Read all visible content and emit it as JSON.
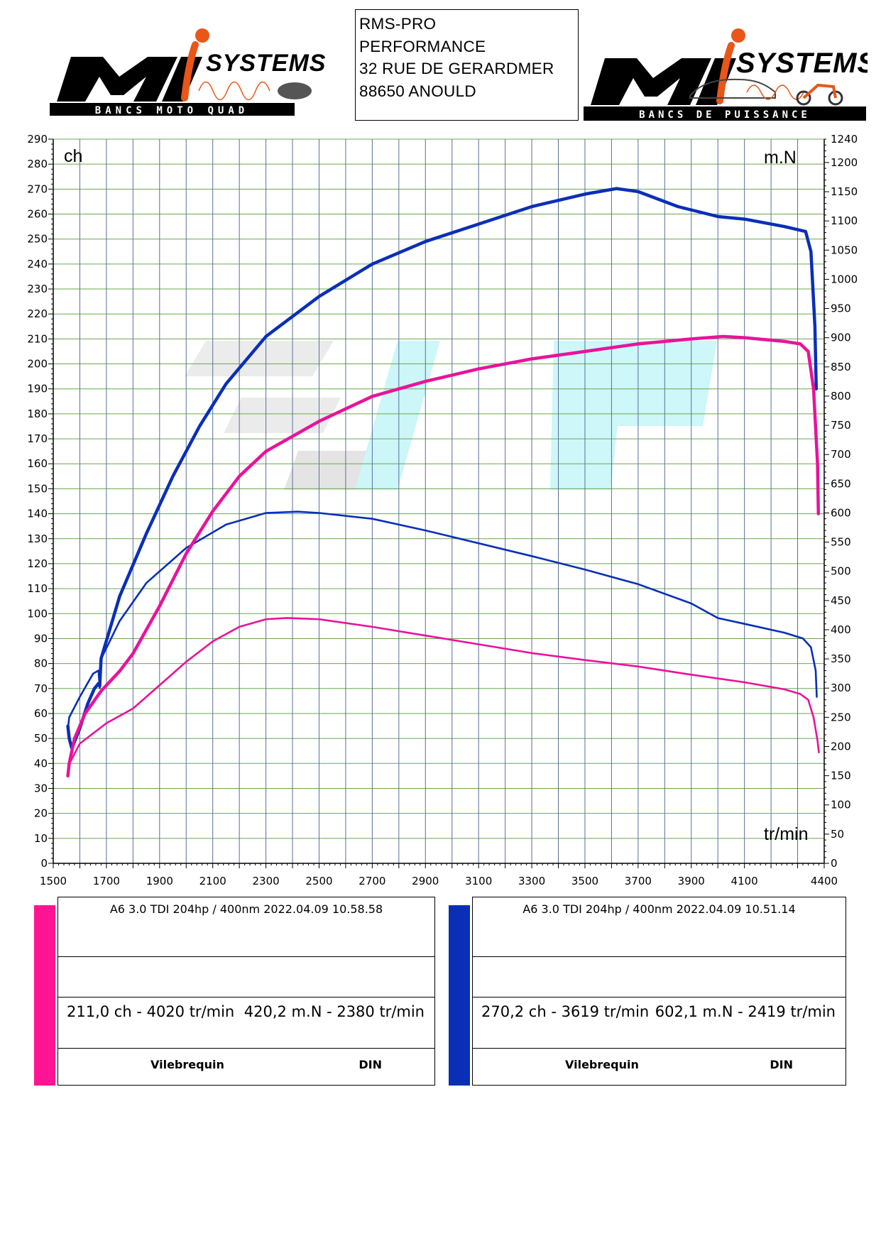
{
  "header": {
    "left_logo": {
      "brand": "Mi SYSTEMS",
      "tagline": "BANCS MOTO QUAD"
    },
    "right_logo": {
      "brand": "Mi SYSTEMS",
      "tagline": "BANCS DE PUISSANCE"
    },
    "address": [
      "RMS-PRO",
      "PERFORMANCE",
      "32 RUE DE GERARDMER",
      "88650 ANOULD"
    ]
  },
  "chart_data": {
    "type": "line",
    "left_axis_label": "ch",
    "right_axis_label": "m.N",
    "x_axis_label": "tr/min",
    "xlim": [
      1500,
      4400
    ],
    "ylim_left": [
      0,
      290
    ],
    "ylim_right": [
      0,
      1240
    ],
    "x_ticks": [
      "1500",
      "1700",
      "1900",
      "2100",
      "2300",
      "2500",
      "2700",
      "2900",
      "3100",
      "3300",
      "3500",
      "3700",
      "3900",
      "4100",
      "4400"
    ],
    "y_left_ticks": [
      "0",
      "10",
      "20",
      "30",
      "40",
      "50",
      "60",
      "70",
      "80",
      "90",
      "100",
      "110",
      "120",
      "130",
      "140",
      "150",
      "160",
      "170",
      "180",
      "190",
      "200",
      "210",
      "220",
      "230",
      "240",
      "250",
      "260",
      "270",
      "280",
      "290"
    ],
    "y_right_ticks": [
      "0",
      "50",
      "100",
      "150",
      "200",
      "250",
      "300",
      "350",
      "400",
      "450",
      "500",
      "550",
      "600",
      "650",
      "700",
      "750",
      "800",
      "850",
      "900",
      "950",
      "1000",
      "1050",
      "1100",
      "1150",
      "1200",
      "1240"
    ],
    "grid": true,
    "colors": {
      "pink": "#e8139a",
      "blue": "#0a2fb7"
    },
    "series": [
      {
        "run": "10.51.14",
        "quantity": "power",
        "axis": "left",
        "color": "#0a2fb7",
        "x": [
          1555,
          1560,
          1570,
          1600,
          1630,
          1655,
          1670,
          1675,
          1680,
          1750,
          1850,
          1950,
          2050,
          2150,
          2300,
          2500,
          2700,
          2900,
          3100,
          3300,
          3500,
          3619,
          3700,
          3850,
          4000,
          4100,
          4250,
          4330,
          4350,
          4365,
          4370
        ],
        "y": [
          55,
          50,
          46,
          54,
          64,
          70,
          72,
          71,
          82,
          107,
          132,
          155,
          175,
          192,
          211,
          227,
          240,
          249,
          256,
          263,
          268,
          270.2,
          269,
          263,
          259,
          258,
          255,
          253,
          245,
          215,
          190
        ]
      },
      {
        "run": "10.51.14",
        "quantity": "torque",
        "axis": "right",
        "color": "#0a2fb7",
        "x": [
          1555,
          1560,
          1600,
          1650,
          1670,
          1675,
          1680,
          1750,
          1850,
          2000,
          2150,
          2300,
          2419,
          2500,
          2700,
          2900,
          3100,
          3300,
          3500,
          3700,
          3900,
          4000,
          4100,
          4250,
          4320,
          4350,
          4368,
          4372
        ],
        "y": [
          230,
          250,
          285,
          325,
          330,
          300,
          350,
          415,
          480,
          540,
          580,
          600,
          602.1,
          600,
          590,
          570,
          548,
          526,
          503,
          478,
          445,
          420,
          410,
          395,
          385,
          370,
          330,
          285
        ]
      },
      {
        "run": "10.58.58",
        "quantity": "power",
        "axis": "left",
        "color": "#e8139a",
        "x": [
          1555,
          1560,
          1580,
          1620,
          1680,
          1750,
          1800,
          1900,
          2000,
          2100,
          2200,
          2300,
          2400,
          2500,
          2700,
          2900,
          3100,
          3300,
          3500,
          3700,
          3900,
          4020,
          4100,
          4250,
          4310,
          4340,
          4360,
          4375,
          4378
        ],
        "y": [
          35,
          40,
          50,
          60,
          69,
          77,
          84,
          103,
          124,
          141,
          155,
          165,
          171,
          177,
          187,
          193,
          198,
          202,
          205,
          208,
          210,
          211,
          210.5,
          209,
          208,
          205,
          190,
          160,
          140
        ]
      },
      {
        "run": "10.58.58",
        "quantity": "torque",
        "axis": "right",
        "color": "#e8139a",
        "x": [
          1555,
          1560,
          1600,
          1700,
          1800,
          1900,
          2000,
          2100,
          2200,
          2300,
          2380,
          2500,
          2700,
          2900,
          3100,
          3300,
          3500,
          3700,
          3900,
          4100,
          4250,
          4310,
          4340,
          4360,
          4375,
          4380
        ],
        "y": [
          150,
          170,
          205,
          240,
          265,
          305,
          345,
          380,
          405,
          418,
          420.2,
          418,
          405,
          390,
          375,
          360,
          348,
          337,
          323,
          310,
          298,
          290,
          280,
          250,
          210,
          190
        ]
      }
    ]
  },
  "runs": [
    {
      "color": "#e8139a",
      "title": "A6 3.0 TDI 204hp / 400nm   2022.04.09 10.58.58",
      "power_peak": "211,0 ch - 4020 tr/min",
      "torque_peak": "420,2 m.N - 2380 tr/min",
      "field_1": "Vilebrequin",
      "field_2": "DIN"
    },
    {
      "color": "#0a2fb7",
      "title": "A6 3.0 TDI 204hp / 400nm   2022.04.09 10.51.14",
      "power_peak": "270,2 ch - 3619 tr/min",
      "torque_peak": "602,1 m.N - 2419 tr/min",
      "field_1": "Vilebrequin",
      "field_2": "DIN"
    }
  ]
}
